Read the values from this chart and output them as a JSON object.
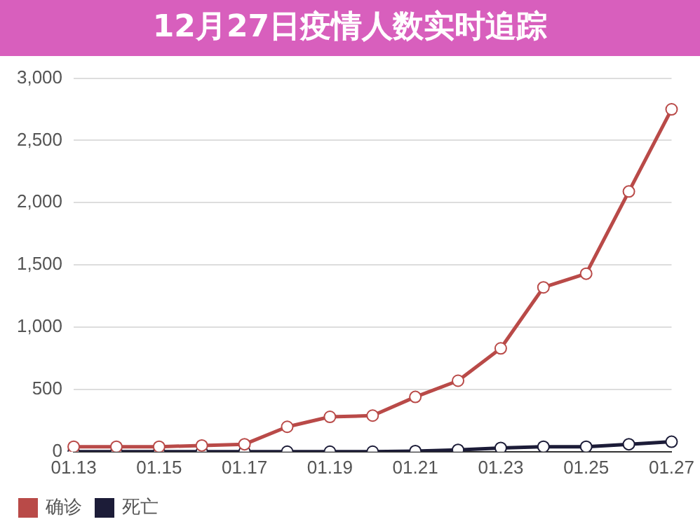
{
  "chart_data": {
    "type": "line",
    "title": "12月27日疫情人数实时追踪",
    "categories": [
      "01.13",
      null,
      "01.15",
      null,
      "01.17",
      null,
      "01.19",
      null,
      "01.21",
      null,
      "01.23",
      null,
      "01.25",
      null,
      "01.27"
    ],
    "series": [
      {
        "name": "确诊",
        "color": "#b94a48",
        "values": [
          40,
          40,
          40,
          50,
          60,
          200,
          280,
          290,
          440,
          570,
          830,
          1320,
          1430,
          2090,
          2750
        ]
      },
      {
        "name": "死亡",
        "color": "#1c1c38",
        "values": [
          0,
          0,
          0,
          0,
          0,
          0,
          0,
          0,
          5,
          15,
          30,
          40,
          40,
          60,
          80
        ]
      }
    ],
    "ylim": [
      0,
      3000
    ],
    "yticks": [
      0,
      500,
      {
        "value": 1000,
        "label": "1,000"
      },
      {
        "value": 1500,
        "label": "1,500"
      },
      {
        "value": 2000,
        "label": "2,000"
      },
      {
        "value": 2500,
        "label": "2,500"
      },
      {
        "value": 3000,
        "label": "3,000"
      }
    ],
    "grid": "y",
    "legend": "bottom left",
    "marker": "circle",
    "line_style": "solid"
  }
}
